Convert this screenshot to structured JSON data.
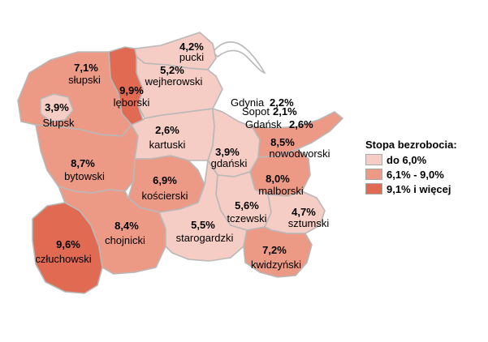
{
  "legend": {
    "title": "Stopa bezrobocia:",
    "classes": [
      {
        "label": "do 6,0%",
        "color": "#f6cdc4"
      },
      {
        "label": "6,1% - 9,0%",
        "color": "#ec9a85"
      },
      {
        "label": "9,1% i więcej",
        "color": "#e06a52"
      }
    ]
  },
  "regions": [
    {
      "id": "pucki",
      "name": "pucki",
      "value": "4,2%",
      "class": 0
    },
    {
      "id": "wejherowski",
      "name": "wejherowski",
      "value": "5,2%",
      "class": 0
    },
    {
      "id": "leborski",
      "name": "lęborski",
      "value": "9,9%",
      "class": 2
    },
    {
      "id": "slupski",
      "name": "słupski",
      "value": "7,1%",
      "class": 1
    },
    {
      "id": "slupsk",
      "name": "Słupsk",
      "value": "3,9%",
      "class": 0
    },
    {
      "id": "bytowski",
      "name": "bytowski",
      "value": "8,7%",
      "class": 1
    },
    {
      "id": "kartuski",
      "name": "kartuski",
      "value": "2,6%",
      "class": 0
    },
    {
      "id": "gdanski",
      "name": "gdański",
      "value": "3,9%",
      "class": 0
    },
    {
      "id": "nowodworski",
      "name": "nowodworski",
      "value": "8,5%",
      "class": 1
    },
    {
      "id": "malborski",
      "name": "malborski",
      "value": "8,0%",
      "class": 1
    },
    {
      "id": "koscierski",
      "name": "kościerski",
      "value": "6,9%",
      "class": 1
    },
    {
      "id": "tczewski",
      "name": "tczewski",
      "value": "5,6%",
      "class": 0
    },
    {
      "id": "sztumski",
      "name": "sztumski",
      "value": "4,7%",
      "class": 0
    },
    {
      "id": "czluchowski",
      "name": "człuchowski",
      "value": "9,6%",
      "class": 2
    },
    {
      "id": "chojnicki",
      "name": "chojnicki",
      "value": "8,4%",
      "class": 1
    },
    {
      "id": "starogardzki",
      "name": "starogardzki",
      "value": "5,5%",
      "class": 0
    },
    {
      "id": "kwidzynski",
      "name": "kwidzyński",
      "value": "7,2%",
      "class": 1
    }
  ],
  "cities": [
    {
      "id": "gdynia",
      "name": "Gdynia",
      "value": "2,2%",
      "class": 0
    },
    {
      "id": "sopot",
      "name": "Sopot",
      "value": "2,1%",
      "class": 0
    },
    {
      "id": "gdansk",
      "name": "Gdańsk",
      "value": "2,6%",
      "class": 0
    }
  ]
}
